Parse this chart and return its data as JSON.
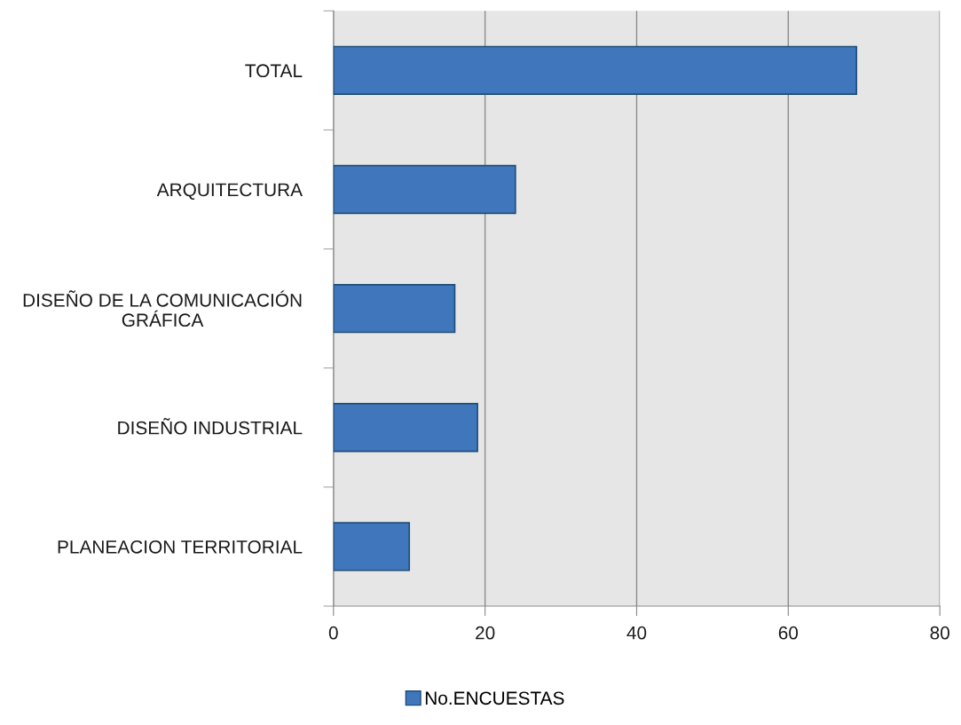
{
  "chart_data": {
    "type": "bar",
    "orientation": "horizontal",
    "categories": [
      "TOTAL",
      "ARQUITECTURA",
      "DISEÑO DE LA COMUNICACIÓN GRÁFICA",
      "DISEÑO INDUSTRIAL",
      "PLANEACION TERRITORIAL"
    ],
    "series": [
      {
        "name": "No.ENCUESTAS",
        "color": "#4076bb",
        "values": [
          69,
          24,
          16,
          19,
          10
        ]
      }
    ],
    "xlim": [
      0,
      80
    ],
    "xticks": [
      0,
      20,
      40,
      60,
      80
    ],
    "grid": "x",
    "legend": "bottom"
  }
}
